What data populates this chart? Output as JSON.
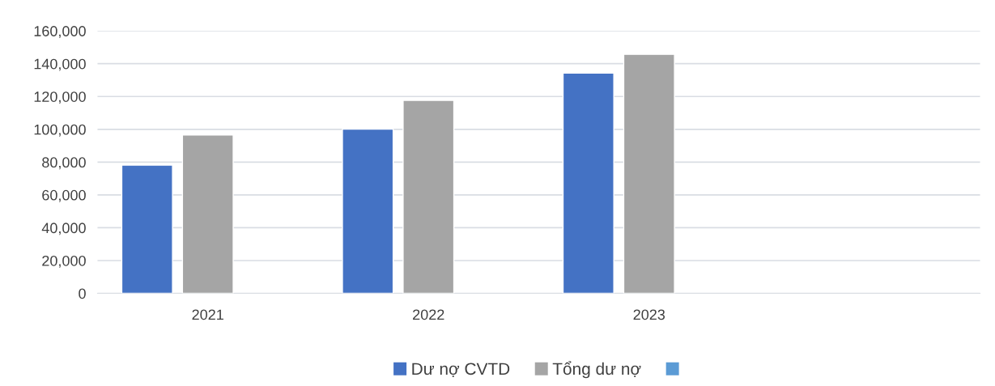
{
  "chart_data": {
    "type": "bar",
    "categories": [
      "2021",
      "2022",
      "2023",
      null
    ],
    "series": [
      {
        "name": "Dư nợ CVTD",
        "color": "#4472c4",
        "values": [
          78200,
          100100,
          134300,
          null
        ]
      },
      {
        "name": "Tổng dư nợ",
        "color": "#a5a5a5",
        "values": [
          96600,
          117600,
          145700,
          null
        ]
      },
      {
        "color": "#5b9bd5",
        "values": [
          null,
          null,
          null,
          null
        ]
      }
    ],
    "ylim": [
      0,
      160000
    ],
    "yticks": [
      {
        "value": 0,
        "label": "0"
      },
      {
        "value": 20000,
        "label": "20,000"
      },
      {
        "value": 40000,
        "label": "40,000"
      },
      {
        "value": 60000,
        "label": "60,000"
      },
      {
        "value": 80000,
        "label": "80,000"
      },
      {
        "value": 100000,
        "label": "100,000"
      },
      {
        "value": 120000,
        "label": "120,000"
      },
      {
        "value": 140000,
        "label": "140,000"
      },
      {
        "value": 160000,
        "label": "160,000"
      }
    ],
    "grid": "y",
    "legend": "bottom"
  }
}
